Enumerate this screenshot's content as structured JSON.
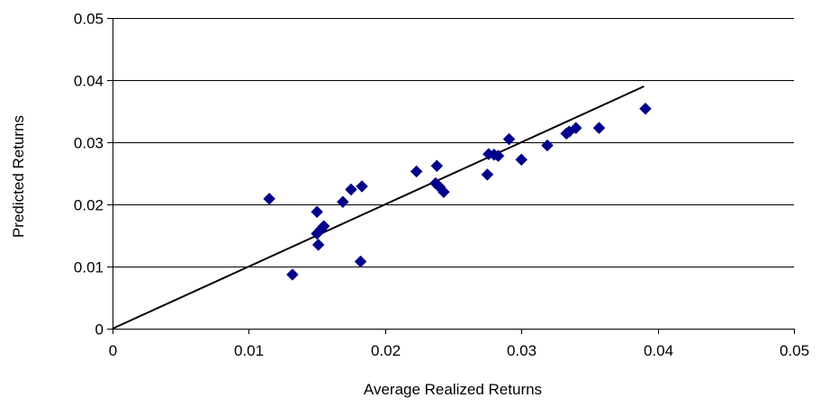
{
  "chart_data": {
    "type": "scatter",
    "title": "",
    "xlabel": "Average Realized Returns",
    "ylabel": "Predicted Returns",
    "xlim": [
      0,
      0.05
    ],
    "ylim": [
      0,
      0.05
    ],
    "x_ticks": [
      "0",
      "0.01",
      "0.02",
      "0.03",
      "0.04",
      "0.05"
    ],
    "y_ticks": [
      "0",
      "0.01",
      "0.02",
      "0.03",
      "0.04",
      "0.05"
    ],
    "grid": "horizontal",
    "legend": "none",
    "marker_color": "#00008B",
    "line_color": "#000000",
    "series": [
      {
        "marker": "diamond",
        "points": [
          [
            0.0115,
            0.0209
          ],
          [
            0.0132,
            0.0087
          ],
          [
            0.015,
            0.0188
          ],
          [
            0.015,
            0.0153
          ],
          [
            0.0151,
            0.0135
          ],
          [
            0.0153,
            0.016
          ],
          [
            0.0155,
            0.0165
          ],
          [
            0.0169,
            0.0204
          ],
          [
            0.0175,
            0.0224
          ],
          [
            0.0182,
            0.0108
          ],
          [
            0.0183,
            0.0229
          ],
          [
            0.0223,
            0.0253
          ],
          [
            0.0237,
            0.0234
          ],
          [
            0.0238,
            0.0262
          ],
          [
            0.024,
            0.0228
          ],
          [
            0.0243,
            0.022
          ],
          [
            0.0275,
            0.0248
          ],
          [
            0.0276,
            0.0281
          ],
          [
            0.028,
            0.028
          ],
          [
            0.0283,
            0.0278
          ],
          [
            0.0291,
            0.0305
          ],
          [
            0.03,
            0.0272
          ],
          [
            0.0319,
            0.0295
          ],
          [
            0.0333,
            0.0314
          ],
          [
            0.0335,
            0.0317
          ],
          [
            0.034,
            0.0323
          ],
          [
            0.0357,
            0.0323
          ],
          [
            0.0391,
            0.0354
          ]
        ]
      }
    ],
    "fit_line": [
      [
        0,
        0
      ],
      [
        0.039,
        0.039
      ]
    ]
  }
}
